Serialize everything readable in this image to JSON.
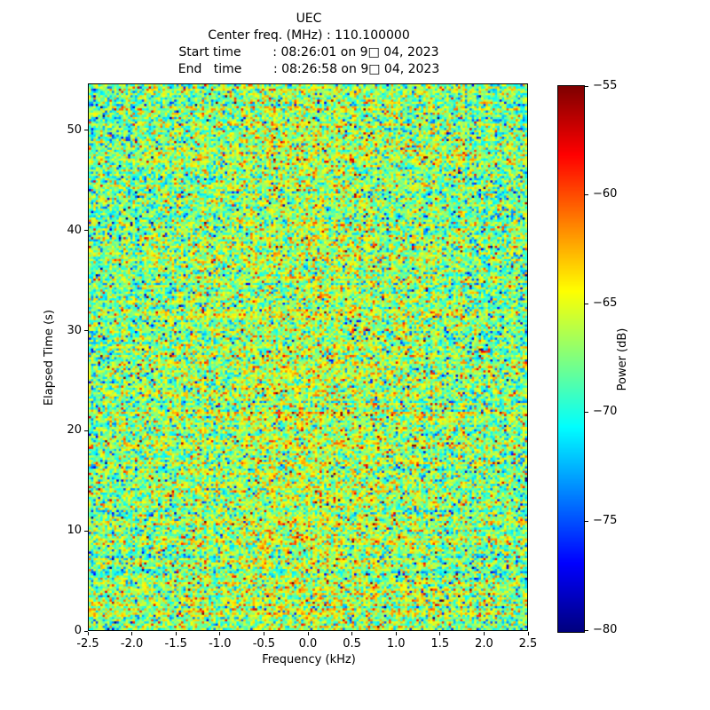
{
  "chart_data": {
    "type": "heatmap",
    "title": "UEC",
    "title_lines": [
      "UEC",
      "Center freq. (MHz) : 110.100000",
      "Start time        : 08:26:01 on 9□ 04, 2023",
      "End   time        : 08:26:58 on 9□ 04, 2023"
    ],
    "xlabel": "Frequency (kHz)",
    "ylabel": "Elapsed Time (s)",
    "colorbar_label": "Power (dB)",
    "colormap": "jet",
    "x_axis": {
      "min": -2.5,
      "max": 2.5,
      "tick_values": [
        -2.5,
        -2.0,
        -1.5,
        -1.0,
        -0.5,
        0.0,
        0.5,
        1.0,
        1.5,
        2.0,
        2.5
      ],
      "tick_labels": [
        "-2.5",
        "-2.0",
        "-1.5",
        "-1.0",
        "-0.5",
        "0.0",
        "0.5",
        "1.0",
        "1.5",
        "2.0",
        "2.5"
      ]
    },
    "y_axis": {
      "min": 0,
      "max": 54.6,
      "tick_values": [
        0,
        10,
        20,
        30,
        40,
        50
      ],
      "tick_labels": [
        "0",
        "10",
        "20",
        "30",
        "40",
        "50"
      ]
    },
    "color_axis": {
      "min": -80,
      "max": -55,
      "tick_values": [
        -55,
        -60,
        -65,
        -70,
        -75,
        -80
      ],
      "tick_labels": [
        "−55",
        "−60",
        "−65",
        "−70",
        "−75",
        "−80"
      ]
    },
    "heatmap_model": {
      "description": "broadband noise spectrogram, no coherent signal; power mostly -74 to -63 dB (green/cyan) with sparse yellow/orange/red hot specks and blue/navy cold specks; slight warm bump near 0 kHz and mid elapsed time",
      "seed": 20230904,
      "grid_cols": 190,
      "grid_rows": 250,
      "mean_db": -68.5,
      "std_db": 3.0,
      "row_variation_db": 0.9,
      "col_variation_db": 0.5,
      "center_freq_bump_db": 1.6,
      "center_freq_bump_width_khz": 1.1,
      "mid_time_bump_db": 0.8,
      "mid_time_bump_center_s": 20,
      "mid_time_bump_width_s": 22,
      "hot_speck_prob": 0.02,
      "cold_speck_prob": 0.025
    }
  }
}
